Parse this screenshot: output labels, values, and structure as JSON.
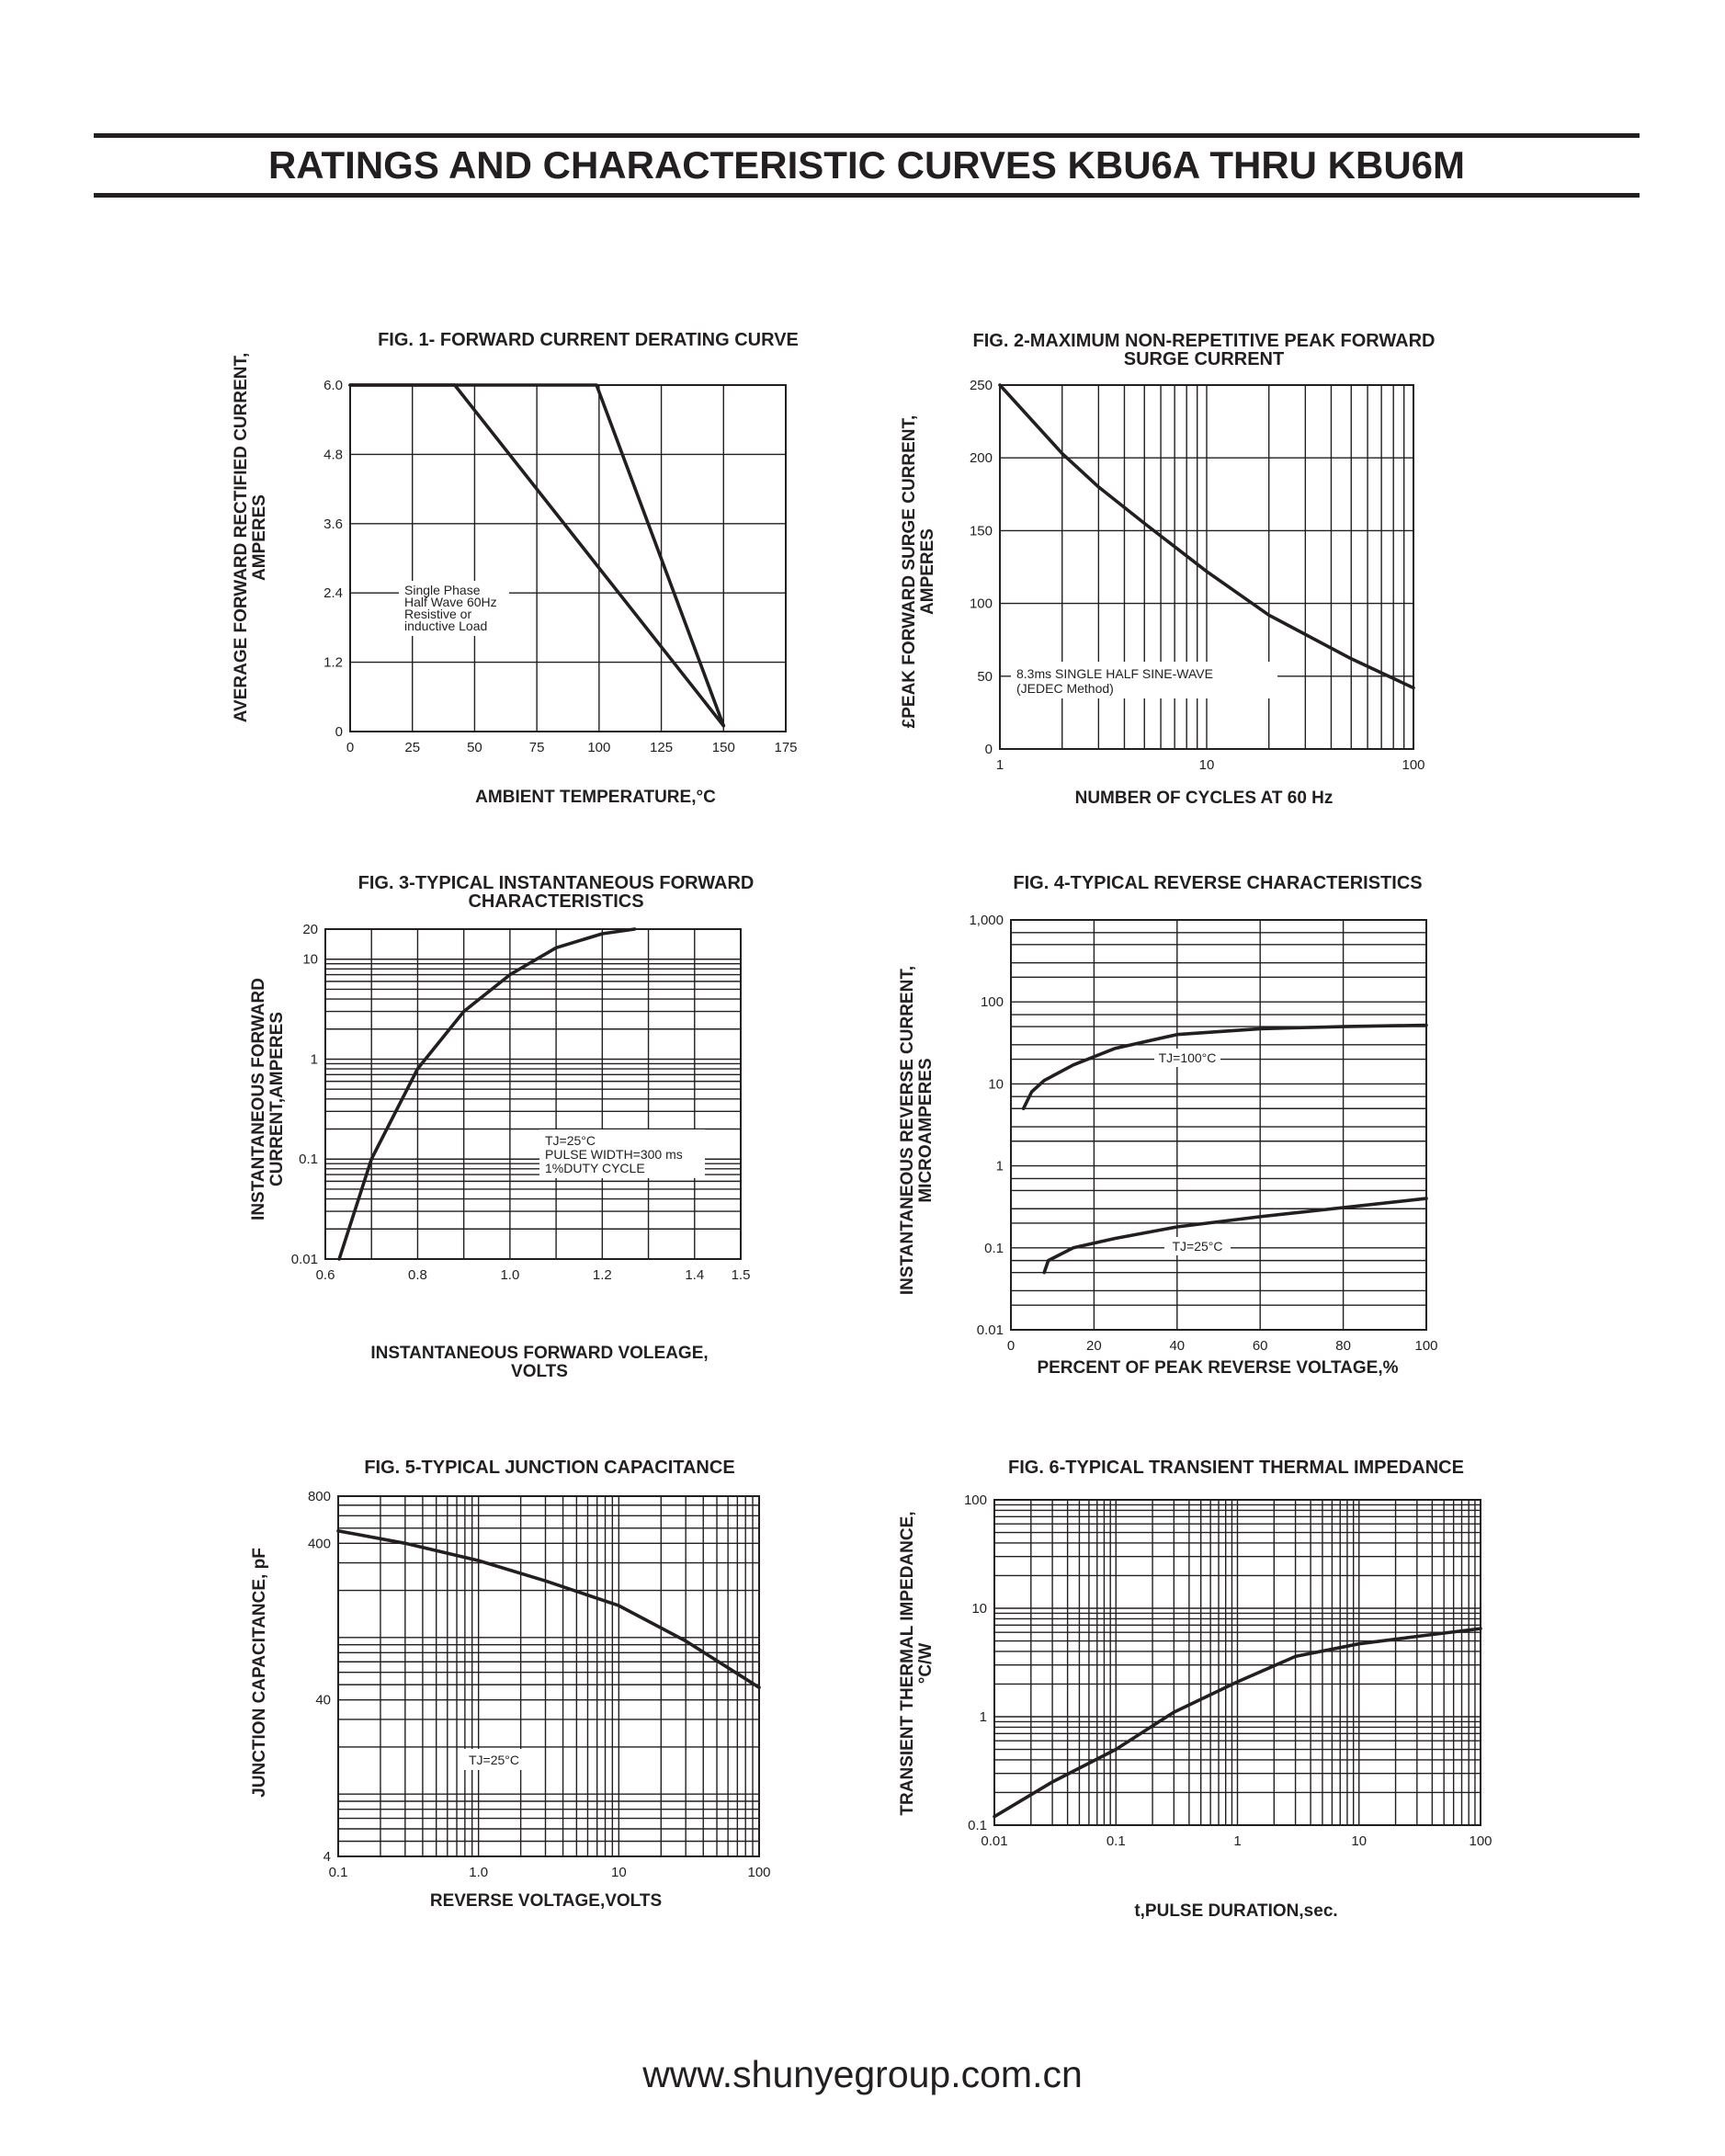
{
  "page": {
    "title": "RATINGS AND CHARACTERISTIC CURVES KBU6A THRU KBU6M",
    "website": "www.shunyegroup.com.cn"
  },
  "chart_data": [
    {
      "id": "fig1",
      "type": "line",
      "title": "FIG. 1- FORWARD CURRENT DERATING CURVE",
      "xlabel": "AMBIENT TEMPERATURE,°C",
      "ylabel": [
        "AVERAGE FORWARD RECTIFIED CURRENT,",
        "AMPERES"
      ],
      "x_scale": "linear",
      "y_scale": "linear",
      "xlim": [
        0,
        175
      ],
      "ylim": [
        0,
        6.0
      ],
      "x_ticks": [
        0,
        25,
        50,
        75,
        100,
        125,
        150,
        175
      ],
      "x_tick_labels": [
        "0",
        "25",
        "50",
        "75",
        "100",
        "125",
        "150",
        "175"
      ],
      "y_ticks": [
        0,
        1.2,
        2.4,
        3.6,
        4.8,
        6.0
      ],
      "y_tick_labels": [
        "0",
        "1.2",
        "2.4",
        "3.6",
        "4.8",
        "6.0"
      ],
      "grid_x": [
        25,
        50,
        75,
        100,
        125,
        150,
        175
      ],
      "grid_y": [
        1.2,
        2.4,
        3.6,
        4.8,
        6.0
      ],
      "series": [
        {
          "x": [
            0,
            42,
            150
          ],
          "y": [
            6.0,
            6.0,
            0.1
          ]
        },
        {
          "x": [
            0,
            99,
            150
          ],
          "y": [
            6.0,
            6.0,
            0.1
          ]
        }
      ],
      "annotation": [
        "Single Phase",
        "Half Wave 60Hz",
        "Resistive or",
        "inductive Load"
      ]
    },
    {
      "id": "fig2",
      "type": "line",
      "title": [
        "FIG. 2-MAXIMUM NON-REPETITIVE PEAK FORWARD",
        "SURGE CURRENT"
      ],
      "xlabel": "NUMBER OF CYCLES AT 60 Hz",
      "ylabel": [
        "£PEAK  FORWARD SURGE CURRENT,",
        "AMPERES"
      ],
      "x_scale": "log",
      "y_scale": "linear",
      "xlim": [
        1,
        100
      ],
      "ylim": [
        0,
        250
      ],
      "x_ticks": [
        1,
        10,
        100
      ],
      "x_tick_labels": [
        "1",
        "10",
        "100"
      ],
      "y_ticks": [
        0,
        50,
        100,
        150,
        200,
        250
      ],
      "y_tick_labels": [
        "0",
        "50",
        "100",
        "150",
        "200",
        "250"
      ],
      "grid_x": [
        2,
        3,
        4,
        5,
        6,
        7,
        8,
        9,
        10,
        20,
        30,
        40,
        50,
        60,
        70,
        80,
        90,
        100
      ],
      "grid_y": [
        50,
        100,
        150,
        200,
        250
      ],
      "series": [
        {
          "x": [
            1,
            2,
            3,
            5,
            10,
            20,
            50,
            100
          ],
          "y": [
            250,
            203,
            180,
            155,
            122,
            92,
            62,
            42
          ]
        }
      ],
      "annotation": [
        "8.3ms SINGLE HALF SINE-WAVE",
        "(JEDEC Method)"
      ]
    },
    {
      "id": "fig3",
      "type": "line",
      "title": [
        "FIG. 3-TYPICAL INSTANTANEOUS FORWARD",
        "CHARACTERISTICS"
      ],
      "xlabel": [
        "INSTANTANEOUS FORWARD VOLEAGE,",
        "VOLTS"
      ],
      "ylabel": [
        "INSTANTANEOUS FORWARD",
        "CURRENT,AMPERES"
      ],
      "x_scale": "linear",
      "y_scale": "log",
      "xlim": [
        0.6,
        1.5
      ],
      "ylim": [
        0.01,
        20
      ],
      "x_ticks": [
        0.6,
        0.8,
        1.0,
        1.2,
        1.4,
        1.5
      ],
      "x_tick_labels": [
        "0.6",
        "0.8",
        "1.0",
        "1.2",
        "1.4",
        "1.5"
      ],
      "y_ticks": [
        0.01,
        0.1,
        1,
        10,
        20
      ],
      "y_tick_labels": [
        "0.01",
        "0.1",
        "1",
        "10",
        "20"
      ],
      "grid_x": [
        0.7,
        0.8,
        0.9,
        1.0,
        1.1,
        1.2,
        1.3,
        1.4,
        1.5
      ],
      "grid_y": [
        0.02,
        0.03,
        0.04,
        0.05,
        0.06,
        0.07,
        0.08,
        0.09,
        0.1,
        0.2,
        0.3,
        0.4,
        0.5,
        0.6,
        0.7,
        0.8,
        0.9,
        1,
        2,
        3,
        4,
        5,
        6,
        7,
        8,
        9,
        10,
        20
      ],
      "series": [
        {
          "x": [
            0.63,
            0.7,
            0.8,
            0.9,
            1.0,
            1.1,
            1.2,
            1.27
          ],
          "y": [
            0.01,
            0.1,
            0.8,
            3.0,
            7.0,
            13.0,
            18.0,
            20.0
          ]
        }
      ],
      "annotation": [
        "TJ=25°C",
        "PULSE WIDTH=300 ms",
        "1%DUTY CYCLE"
      ]
    },
    {
      "id": "fig4",
      "type": "line",
      "title": "FIG. 4-TYPICAL REVERSE CHARACTERISTICS",
      "xlabel": "PERCENT OF PEAK REVERSE VOLTAGE,%",
      "ylabel": [
        "INSTANTANEOUS REVERSE CURRENT,",
        "MICROAMPERES"
      ],
      "x_scale": "linear",
      "y_scale": "log",
      "xlim": [
        0,
        100
      ],
      "ylim": [
        0.01,
        1000
      ],
      "x_ticks": [
        0,
        20,
        40,
        60,
        80,
        100
      ],
      "x_tick_labels": [
        "0",
        "20",
        "40",
        "60",
        "80",
        "100"
      ],
      "y_ticks": [
        0.01,
        0.1,
        1,
        10,
        100,
        1000
      ],
      "y_tick_labels": [
        "0.01",
        "0.1",
        "1",
        "10",
        "100",
        "1,000"
      ],
      "grid_x": [
        20,
        40,
        60,
        80,
        100
      ],
      "grid_y": [
        0.02,
        0.03,
        0.05,
        0.07,
        0.1,
        0.2,
        0.3,
        0.5,
        0.7,
        1,
        2,
        3,
        5,
        7,
        10,
        20,
        30,
        50,
        70,
        100,
        200,
        300,
        500,
        700,
        1000
      ],
      "series": [
        {
          "name": "TJ=100°C",
          "x": [
            3,
            5,
            8,
            15,
            25,
            40,
            60,
            80,
            100
          ],
          "y": [
            5,
            8,
            11,
            17,
            27,
            40,
            47,
            50,
            52
          ]
        },
        {
          "name": "TJ=25°C",
          "x": [
            8,
            9,
            15,
            25,
            40,
            60,
            80,
            100
          ],
          "y": [
            0.05,
            0.07,
            0.1,
            0.13,
            0.18,
            0.24,
            0.31,
            0.4
          ]
        }
      ],
      "series_labels": [
        "TJ=100°C",
        "TJ=25°C"
      ]
    },
    {
      "id": "fig5",
      "type": "line",
      "title": "FIG. 5-TYPICAL JUNCTION CAPACITANCE",
      "xlabel": "REVERSE VOLTAGE,VOLTS",
      "ylabel": "JUNCTION CAPACITANCE, pF",
      "x_scale": "log",
      "y_scale": "log",
      "xlim": [
        0.1,
        100
      ],
      "ylim": [
        4,
        800
      ],
      "x_ticks": [
        0.1,
        1.0,
        10,
        100
      ],
      "x_tick_labels": [
        "0.1",
        "1.0",
        "10",
        "100"
      ],
      "y_ticks": [
        4,
        40,
        400,
        800
      ],
      "y_tick_labels": [
        "4",
        "40",
        "400",
        "800"
      ],
      "grid_x": [
        0.2,
        0.3,
        0.4,
        0.5,
        0.6,
        0.7,
        0.8,
        0.9,
        1,
        2,
        3,
        4,
        5,
        6,
        7,
        8,
        9,
        10,
        20,
        30,
        40,
        50,
        60,
        70,
        80,
        90,
        100
      ],
      "grid_y": [
        5,
        6,
        7,
        8,
        9,
        10,
        20,
        30,
        40,
        50,
        60,
        70,
        80,
        90,
        100,
        200,
        300,
        400,
        500,
        600,
        700,
        800
      ],
      "series": [
        {
          "x": [
            0.1,
            0.3,
            1,
            3,
            10,
            30,
            100
          ],
          "y": [
            480,
            400,
            310,
            230,
            160,
            95,
            48
          ]
        }
      ],
      "annotation": "TJ=25°C"
    },
    {
      "id": "fig6",
      "type": "line",
      "title": "FIG. 6-TYPICAL TRANSIENT THERMAL IMPEDANCE",
      "xlabel": "t,PULSE DURATION,sec.",
      "ylabel": [
        "TRANSIENT THERMAL IMPEDANCE,",
        "°C/W"
      ],
      "x_scale": "log",
      "y_scale": "log",
      "xlim": [
        0.01,
        100
      ],
      "ylim": [
        0.1,
        100
      ],
      "x_ticks": [
        0.01,
        0.1,
        1,
        10,
        100
      ],
      "x_tick_labels": [
        "0.01",
        "0.1",
        "1",
        "10",
        "100"
      ],
      "y_ticks": [
        0.1,
        1,
        10,
        100
      ],
      "y_tick_labels": [
        "0.1",
        "1",
        "10",
        "100"
      ],
      "grid_x": [
        0.02,
        0.03,
        0.04,
        0.05,
        0.06,
        0.07,
        0.08,
        0.09,
        0.1,
        0.2,
        0.3,
        0.4,
        0.5,
        0.6,
        0.7,
        0.8,
        0.9,
        1,
        2,
        3,
        4,
        5,
        6,
        7,
        8,
        9,
        10,
        20,
        30,
        40,
        50,
        60,
        70,
        80,
        90,
        100
      ],
      "grid_y": [
        0.2,
        0.3,
        0.4,
        0.5,
        0.6,
        0.7,
        0.8,
        0.9,
        1,
        2,
        3,
        4,
        5,
        6,
        7,
        8,
        9,
        10,
        20,
        30,
        40,
        50,
        60,
        70,
        80,
        90,
        100
      ],
      "series": [
        {
          "x": [
            0.01,
            0.03,
            0.1,
            0.3,
            1,
            3,
            10,
            30,
            100
          ],
          "y": [
            0.12,
            0.25,
            0.5,
            1.1,
            2.1,
            3.6,
            4.7,
            5.5,
            6.5
          ]
        }
      ]
    }
  ]
}
